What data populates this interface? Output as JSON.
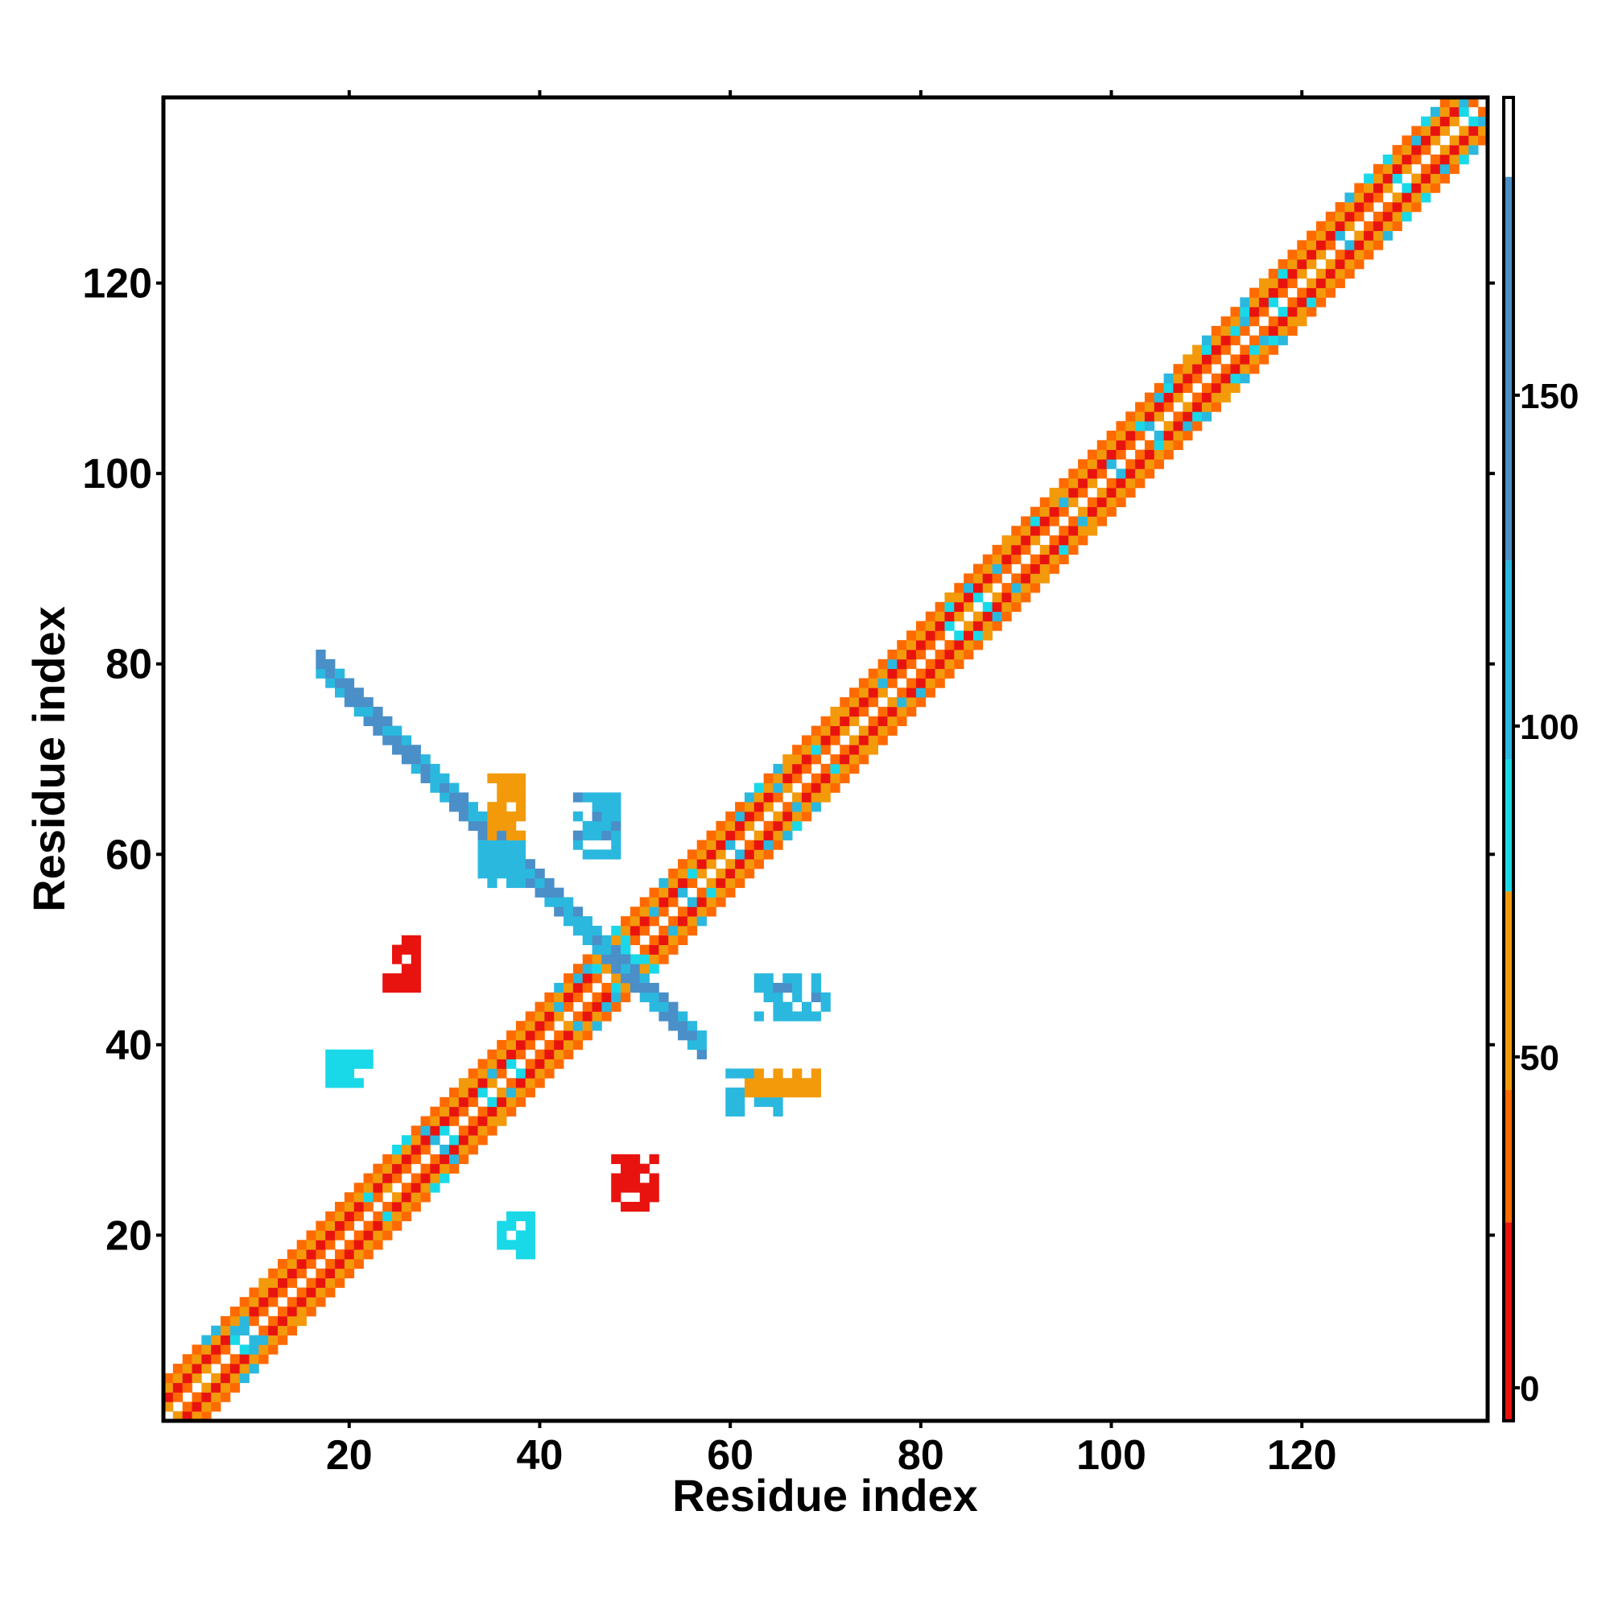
{
  "chart_data": {
    "type": "heatmap",
    "title": "",
    "xlabel": "Residue index",
    "ylabel": "Residue index",
    "xlim": [
      1,
      139
    ],
    "ylim": [
      1,
      139
    ],
    "x_ticks": [
      20,
      40,
      60,
      80,
      100,
      120
    ],
    "y_ticks": [
      20,
      40,
      60,
      80,
      100,
      120
    ],
    "colorbar": {
      "range": [
        -5,
        195
      ],
      "ticks": [
        0,
        50,
        100,
        150
      ],
      "segments": [
        {
          "from": -5,
          "to": 25,
          "color": "#e8130f"
        },
        {
          "from": 25,
          "to": 45,
          "color": "#ff6a00"
        },
        {
          "from": 45,
          "to": 75,
          "color": "#f39a0b"
        },
        {
          "from": 75,
          "to": 95,
          "color": "#19d9e8"
        },
        {
          "from": 95,
          "to": 125,
          "color": "#2bb8df"
        },
        {
          "from": 125,
          "to": 183,
          "color": "#4a8fc8"
        },
        {
          "from": 183,
          "to": 195,
          "color": "#ffffff"
        }
      ]
    },
    "colors": {
      "red": "#e8130f",
      "orange": "#ff6a00",
      "amber": "#f39a0b",
      "cyan": "#19d9e8",
      "sky": "#2bb8df",
      "steel": "#4a8fc8"
    },
    "grid": false,
    "legend": "colorbar-right",
    "cells": {
      "diagonal_bands": [
        {
          "from": 1,
          "to": 139,
          "offsets": [
            1,
            2,
            3,
            4
          ]
        }
      ],
      "anti_diagonal_band": {
        "x_from": 17,
        "x_to": 57,
        "sum": 97,
        "width": 3
      },
      "clusters": [
        {
          "x": [
            34,
            38
          ],
          "y": [
            57,
            61
          ],
          "value": 110
        },
        {
          "x": [
            35,
            38
          ],
          "y": [
            62,
            68
          ],
          "value": 55
        },
        {
          "x": [
            44,
            48
          ],
          "y": [
            60,
            66
          ],
          "value": 120
        },
        {
          "x": [
            60,
            66
          ],
          "y": [
            33,
            37
          ],
          "value": 110
        },
        {
          "x": [
            62,
            69
          ],
          "y": [
            35,
            37
          ],
          "value": 55
        },
        {
          "x": [
            63,
            70
          ],
          "y": [
            43,
            47
          ],
          "value": 120
        },
        {
          "x": [
            24,
            27
          ],
          "y": [
            46,
            51
          ],
          "value": 5
        },
        {
          "x": [
            48,
            52
          ],
          "y": [
            23,
            28
          ],
          "value": 5
        },
        {
          "x": [
            18,
            22
          ],
          "y": [
            36,
            39
          ],
          "value": 85
        },
        {
          "x": [
            36,
            39
          ],
          "y": [
            18,
            22
          ],
          "value": 85
        }
      ]
    }
  }
}
